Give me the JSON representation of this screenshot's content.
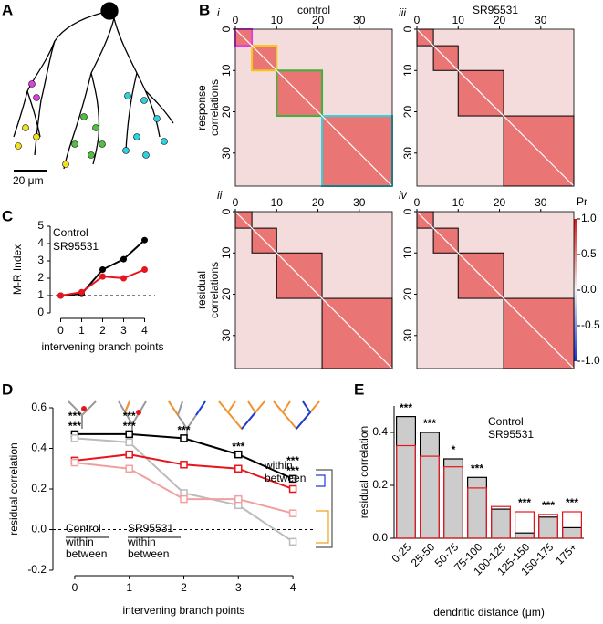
{
  "chart_data": [
    {
      "type": "diagram",
      "panel_label": "A",
      "scale_label": "20 μm"
    },
    {
      "type": "heatmap",
      "panel_label": "B",
      "column_titles": [
        "control",
        "SR95531"
      ],
      "column_title_colors": [
        "#000000",
        "#e8141b"
      ],
      "row_titles": [
        [
          "response",
          "correlations"
        ],
        [
          "residual",
          "correlations"
        ]
      ],
      "xlim": [
        0,
        38
      ],
      "ylim": [
        0,
        38
      ],
      "xticks": [
        0,
        10,
        20,
        30
      ],
      "yticks": [
        0,
        10,
        20,
        30
      ],
      "clusters": [
        [
          0,
          4
        ],
        [
          4,
          10
        ],
        [
          10,
          21
        ],
        [
          21,
          38
        ]
      ],
      "panels": [
        {
          "label": "i",
          "box_colors": [
            "#e040e0",
            "#f5c518",
            "#3cb43c",
            "#30d0e0"
          ]
        },
        {
          "label": "ii",
          "box_colors": [
            "#000000",
            "#000000",
            "#000000",
            "#000000"
          ]
        },
        {
          "label": "iii",
          "box_colors": [
            "#000000",
            "#000000",
            "#000000",
            "#000000"
          ]
        },
        {
          "label": "iv",
          "box_colors": [
            "#000000",
            "#000000",
            "#000000",
            "#000000"
          ]
        }
      ],
      "colorbar": {
        "label": "Pr",
        "lim": [
          -1,
          1
        ],
        "ticks": [
          {
            "value": 1,
            "label": "1.0"
          },
          {
            "value": 0.5,
            "label": "0.5"
          },
          {
            "value": 0,
            "label": "0.0"
          },
          {
            "value": -0.5,
            "label": "-0.5"
          },
          {
            "value": -1,
            "label": "-1.0"
          }
        ]
      }
    },
    {
      "type": "line",
      "panel_label": "C",
      "ylabel": "M-R Index",
      "xlabel": "intervening branch points",
      "x": [
        0,
        1,
        2,
        3,
        4
      ],
      "xlim": [
        -0.5,
        4.5
      ],
      "xticks": [
        0,
        1,
        2,
        3,
        4
      ],
      "ylim": [
        0,
        5
      ],
      "yticks": [
        0,
        1,
        2,
        3,
        4,
        5
      ],
      "reference_line": 1,
      "marker": "circle",
      "series": [
        {
          "name": "Control",
          "color": "#000000",
          "values": [
            1,
            1.1,
            2.5,
            3.1,
            4.2
          ]
        },
        {
          "name": "SR95531",
          "color": "#e8141b",
          "values": [
            1,
            1.2,
            2.1,
            2.0,
            2.5
          ]
        }
      ]
    },
    {
      "type": "line",
      "panel_label": "D",
      "ylabel": "residual correlation",
      "xlabel": "intervening branch points",
      "x": [
        0,
        1,
        2,
        3,
        4
      ],
      "xlim": [
        -0.4,
        4.4
      ],
      "xticks": [
        0,
        1,
        2,
        3,
        4
      ],
      "ylim": [
        -0.2,
        0.6
      ],
      "yticks": [
        {
          "value": -0.2,
          "label": "-0.2"
        },
        {
          "value": 0,
          "label": "0.0"
        },
        {
          "value": 0.2,
          "label": "0.2"
        },
        {
          "value": 0.4,
          "label": "0.4"
        },
        {
          "value": 0.6,
          "label": "0.6"
        }
      ],
      "reference_line": 0,
      "marker": "square",
      "series": [
        {
          "name": "within",
          "group": "Control",
          "color": "#000000",
          "values": [
            0.47,
            0.47,
            0.45,
            0.37,
            0.25
          ]
        },
        {
          "name": "between",
          "group": "Control",
          "color": "#bbbbbb",
          "values": [
            0.45,
            0.43,
            0.18,
            0.12,
            -0.06
          ]
        },
        {
          "name": "within",
          "group": "SR95531",
          "color": "#e8141b",
          "values": [
            0.34,
            0.37,
            0.32,
            0.3,
            0.2
          ]
        },
        {
          "name": "between",
          "group": "SR95531",
          "color": "#f0a0a0",
          "values": [
            0.33,
            0.3,
            0.15,
            0.15,
            0.08
          ]
        }
      ],
      "groups": [
        "Control",
        "SR95531"
      ],
      "group_colors": [
        "#000000",
        "#e8141b"
      ],
      "key": [
        {
          "text": "within",
          "color": "#1a3cd8"
        },
        {
          "text": "between",
          "color": "#f0922e"
        }
      ],
      "annotations": [
        {
          "x": 0,
          "text": "***",
          "color": "#f0a020"
        },
        {
          "x": 0,
          "text": "***",
          "color": "#1a3cd8"
        },
        {
          "x": 1,
          "text": "***",
          "color": "#f0a020"
        },
        {
          "x": 1,
          "text": "***",
          "color": "#1a3cd8"
        },
        {
          "x": 2,
          "text": "***",
          "color": "#000000"
        },
        {
          "x": 3,
          "text": "***",
          "color": "#000000"
        },
        {
          "x": 4,
          "text": "***",
          "color": "#f0a020"
        },
        {
          "x": 4,
          "text": "***",
          "color": "#000000"
        }
      ]
    },
    {
      "type": "bar",
      "panel_label": "E",
      "ylabel": "residual correlation",
      "xlabel": "dendritic distance (μm)",
      "categories": [
        "0-25",
        "25-50",
        "50-75",
        "75-100",
        "100-125",
        "125-150",
        "150-175",
        "175+"
      ],
      "ylim": [
        0,
        0.5
      ],
      "yticks": [
        {
          "value": 0,
          "label": "0.0"
        },
        {
          "value": 0.2,
          "label": "0.2"
        },
        {
          "value": 0.4,
          "label": "0.4"
        }
      ],
      "series": [
        {
          "name": "Control",
          "color": "#000000",
          "fill": "#cccccc",
          "values": [
            0.46,
            0.4,
            0.3,
            0.23,
            0.11,
            0.02,
            0.08,
            0.04
          ]
        },
        {
          "name": "SR95531",
          "color": "#e8141b",
          "fill": "none",
          "values": [
            0.35,
            0.31,
            0.27,
            0.19,
            0.12,
            0.1,
            0.09,
            0.1
          ]
        }
      ],
      "significance": [
        "***",
        "***",
        "*",
        "***",
        null,
        "***",
        "***",
        "***"
      ]
    }
  ]
}
